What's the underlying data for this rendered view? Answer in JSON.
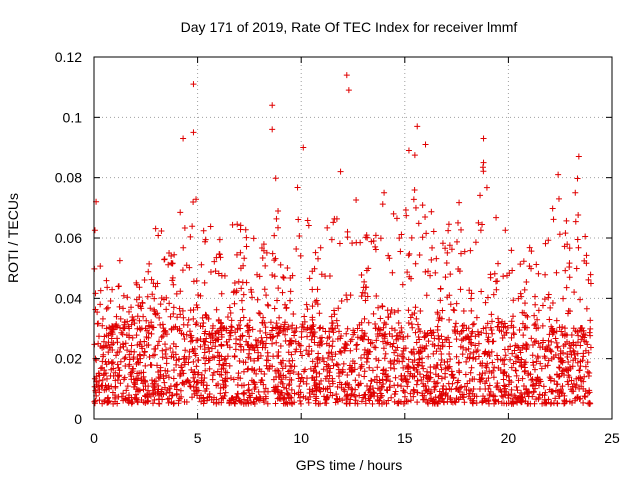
{
  "chart_data": {
    "type": "scatter",
    "title": "Day 171 of 2019, Rate Of TEC Index for receiver lmmf",
    "xlabel": "GPS time / hours",
    "ylabel": "ROTI / TECUs",
    "xlim": [
      0,
      25
    ],
    "ylim": [
      0,
      0.12
    ],
    "xticks": [
      0,
      5,
      10,
      15,
      20,
      25
    ],
    "xtick_labels": [
      "0",
      "5",
      "10",
      "15",
      "20",
      "25"
    ],
    "yticks": [
      0,
      0.02,
      0.04,
      0.06,
      0.08,
      0.1,
      0.12
    ],
    "ytick_labels": [
      "0",
      "0.02",
      "0.04",
      "0.06",
      "0.08",
      "0.1",
      "0.12"
    ],
    "grid": true,
    "marker": "+",
    "color": "#e00000",
    "series": [
      {
        "name": "ROTI",
        "x_range": [
          0,
          24
        ],
        "typical_range": [
          0.005,
          0.03
        ],
        "envelope": [
          {
            "x": 0.0,
            "y": 0.072
          },
          {
            "x": 0.5,
            "y": 0.05
          },
          {
            "x": 1.0,
            "y": 0.055
          },
          {
            "x": 1.5,
            "y": 0.053
          },
          {
            "x": 2.0,
            "y": 0.045
          },
          {
            "x": 2.5,
            "y": 0.05
          },
          {
            "x": 3.0,
            "y": 0.066
          },
          {
            "x": 3.5,
            "y": 0.06
          },
          {
            "x": 4.0,
            "y": 0.058
          },
          {
            "x": 4.3,
            "y": 0.093
          },
          {
            "x": 4.8,
            "y": 0.095
          },
          {
            "x": 5.0,
            "y": 0.06
          },
          {
            "x": 5.5,
            "y": 0.068
          },
          {
            "x": 6.0,
            "y": 0.058
          },
          {
            "x": 6.5,
            "y": 0.068
          },
          {
            "x": 7.0,
            "y": 0.065
          },
          {
            "x": 7.5,
            "y": 0.066
          },
          {
            "x": 8.0,
            "y": 0.055
          },
          {
            "x": 8.6,
            "y": 0.096
          },
          {
            "x": 9.0,
            "y": 0.062
          },
          {
            "x": 9.5,
            "y": 0.055
          },
          {
            "x": 10.0,
            "y": 0.09
          },
          {
            "x": 10.5,
            "y": 0.058
          },
          {
            "x": 11.0,
            "y": 0.065
          },
          {
            "x": 11.5,
            "y": 0.066
          },
          {
            "x": 12.0,
            "y": 0.082
          },
          {
            "x": 12.3,
            "y": 0.109
          },
          {
            "x": 13.0,
            "y": 0.06
          },
          {
            "x": 13.5,
            "y": 0.064
          },
          {
            "x": 14.0,
            "y": 0.075
          },
          {
            "x": 14.5,
            "y": 0.068
          },
          {
            "x": 15.0,
            "y": 0.085
          },
          {
            "x": 15.5,
            "y": 0.089
          },
          {
            "x": 16.0,
            "y": 0.091
          },
          {
            "x": 16.5,
            "y": 0.064
          },
          {
            "x": 17.0,
            "y": 0.058
          },
          {
            "x": 17.5,
            "y": 0.084
          },
          {
            "x": 18.0,
            "y": 0.062
          },
          {
            "x": 18.8,
            "y": 0.085
          },
          {
            "x": 19.5,
            "y": 0.065
          },
          {
            "x": 20.0,
            "y": 0.062
          },
          {
            "x": 20.5,
            "y": 0.055
          },
          {
            "x": 21.0,
            "y": 0.058
          },
          {
            "x": 21.5,
            "y": 0.062
          },
          {
            "x": 22.0,
            "y": 0.068
          },
          {
            "x": 22.4,
            "y": 0.081
          },
          {
            "x": 23.0,
            "y": 0.065
          },
          {
            "x": 23.4,
            "y": 0.087
          },
          {
            "x": 24.0,
            "y": 0.051
          }
        ],
        "outliers": [
          {
            "x": 0.1,
            "y": 0.072
          },
          {
            "x": 4.3,
            "y": 0.093
          },
          {
            "x": 4.8,
            "y": 0.111
          },
          {
            "x": 4.8,
            "y": 0.095
          },
          {
            "x": 8.6,
            "y": 0.104
          },
          {
            "x": 8.6,
            "y": 0.096
          },
          {
            "x": 10.1,
            "y": 0.09
          },
          {
            "x": 12.2,
            "y": 0.114
          },
          {
            "x": 12.3,
            "y": 0.109
          },
          {
            "x": 15.6,
            "y": 0.097
          },
          {
            "x": 16.0,
            "y": 0.091
          },
          {
            "x": 15.2,
            "y": 0.089
          },
          {
            "x": 18.8,
            "y": 0.093
          },
          {
            "x": 18.8,
            "y": 0.085
          },
          {
            "x": 22.4,
            "y": 0.081
          },
          {
            "x": 23.4,
            "y": 0.087
          },
          {
            "x": 11.9,
            "y": 0.082
          },
          {
            "x": 14.0,
            "y": 0.075
          }
        ]
      }
    ]
  }
}
